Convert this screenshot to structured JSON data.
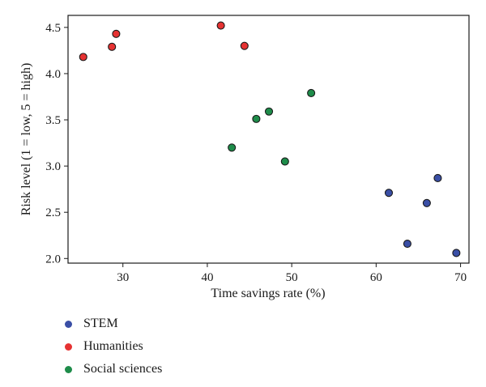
{
  "chart_data": {
    "type": "scatter",
    "xlabel": "Time savings rate (%)",
    "ylabel": "Risk level (1 = low, 5 = high)",
    "xlim": [
      23.5,
      71
    ],
    "ylim": [
      1.95,
      4.63
    ],
    "xticks": [
      30,
      40,
      50,
      60,
      70
    ],
    "yticks": [
      "2.0",
      "2.5",
      "3.0",
      "3.5",
      "4.0",
      "4.5"
    ],
    "grid": false,
    "legend_position": "below-left",
    "series": [
      {
        "name": "STEM",
        "color": "#3a4fa6",
        "points": [
          [
            61.5,
            2.71
          ],
          [
            63.7,
            2.16
          ],
          [
            66.0,
            2.6
          ],
          [
            67.3,
            2.87
          ],
          [
            69.5,
            2.06
          ]
        ]
      },
      {
        "name": "Humanities",
        "color": "#e63232",
        "points": [
          [
            25.3,
            4.18
          ],
          [
            28.7,
            4.29
          ],
          [
            29.2,
            4.43
          ],
          [
            41.6,
            4.52
          ],
          [
            44.4,
            4.3
          ]
        ]
      },
      {
        "name": "Social sciences",
        "color": "#1e8c4a",
        "points": [
          [
            42.9,
            3.2
          ],
          [
            45.8,
            3.51
          ],
          [
            47.3,
            3.59
          ],
          [
            49.2,
            3.05
          ],
          [
            52.3,
            3.79
          ]
        ]
      }
    ]
  }
}
